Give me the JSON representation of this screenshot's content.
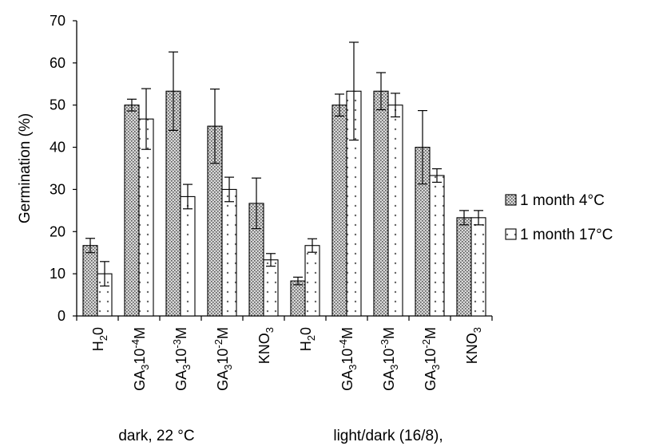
{
  "chart_data": {
    "type": "bar",
    "ylabel": "Germination (%)",
    "ylim": [
      0,
      70
    ],
    "yticks": [
      0,
      10,
      20,
      30,
      40,
      50,
      60,
      70
    ],
    "grid": false,
    "legend_position": "right",
    "categories": [
      {
        "base": "H",
        "sub": "2",
        "tail": "0",
        "sup": ""
      },
      {
        "base": "GA",
        "sub": "3",
        "tail": "10",
        "sup": "-4",
        "end": "M"
      },
      {
        "base": "GA",
        "sub": "3",
        "tail": "10",
        "sup": "-3",
        "end": "M"
      },
      {
        "base": "GA",
        "sub": "3",
        "tail": "10",
        "sup": "-2",
        "end": "M"
      },
      {
        "base": "KNO",
        "sub": "3",
        "tail": "",
        "sup": ""
      },
      {
        "base": "H",
        "sub": "2",
        "tail": "0",
        "sup": ""
      },
      {
        "base": "GA",
        "sub": "3",
        "tail": "10",
        "sup": "-4",
        "end": "M"
      },
      {
        "base": "GA",
        "sub": "3",
        "tail": "10",
        "sup": "-3",
        "end": "M"
      },
      {
        "base": "GA",
        "sub": "3",
        "tail": "10",
        "sup": "-2",
        "end": "M"
      },
      {
        "base": "KNO",
        "sub": "3",
        "tail": "",
        "sup": ""
      }
    ],
    "groups": [
      "dark, 22 °C",
      "light/dark (16/8),"
    ],
    "series": [
      {
        "name": "1 month 4°C",
        "pattern": "dense-dots",
        "values": [
          16.7,
          50.0,
          53.3,
          45.0,
          26.7,
          8.3,
          50.0,
          53.3,
          40.0,
          23.3
        ],
        "errors": [
          1.7,
          1.4,
          9.3,
          8.8,
          6.0,
          0.9,
          2.6,
          4.4,
          8.7,
          1.7
        ]
      },
      {
        "name": "1 month 17°C",
        "pattern": "sparse-dots",
        "values": [
          10.0,
          46.7,
          28.3,
          30.0,
          13.3,
          16.7,
          53.3,
          50.0,
          33.3,
          23.3
        ],
        "errors": [
          2.9,
          7.2,
          2.9,
          2.9,
          1.5,
          1.6,
          11.6,
          2.8,
          1.6,
          1.7
        ]
      }
    ]
  }
}
